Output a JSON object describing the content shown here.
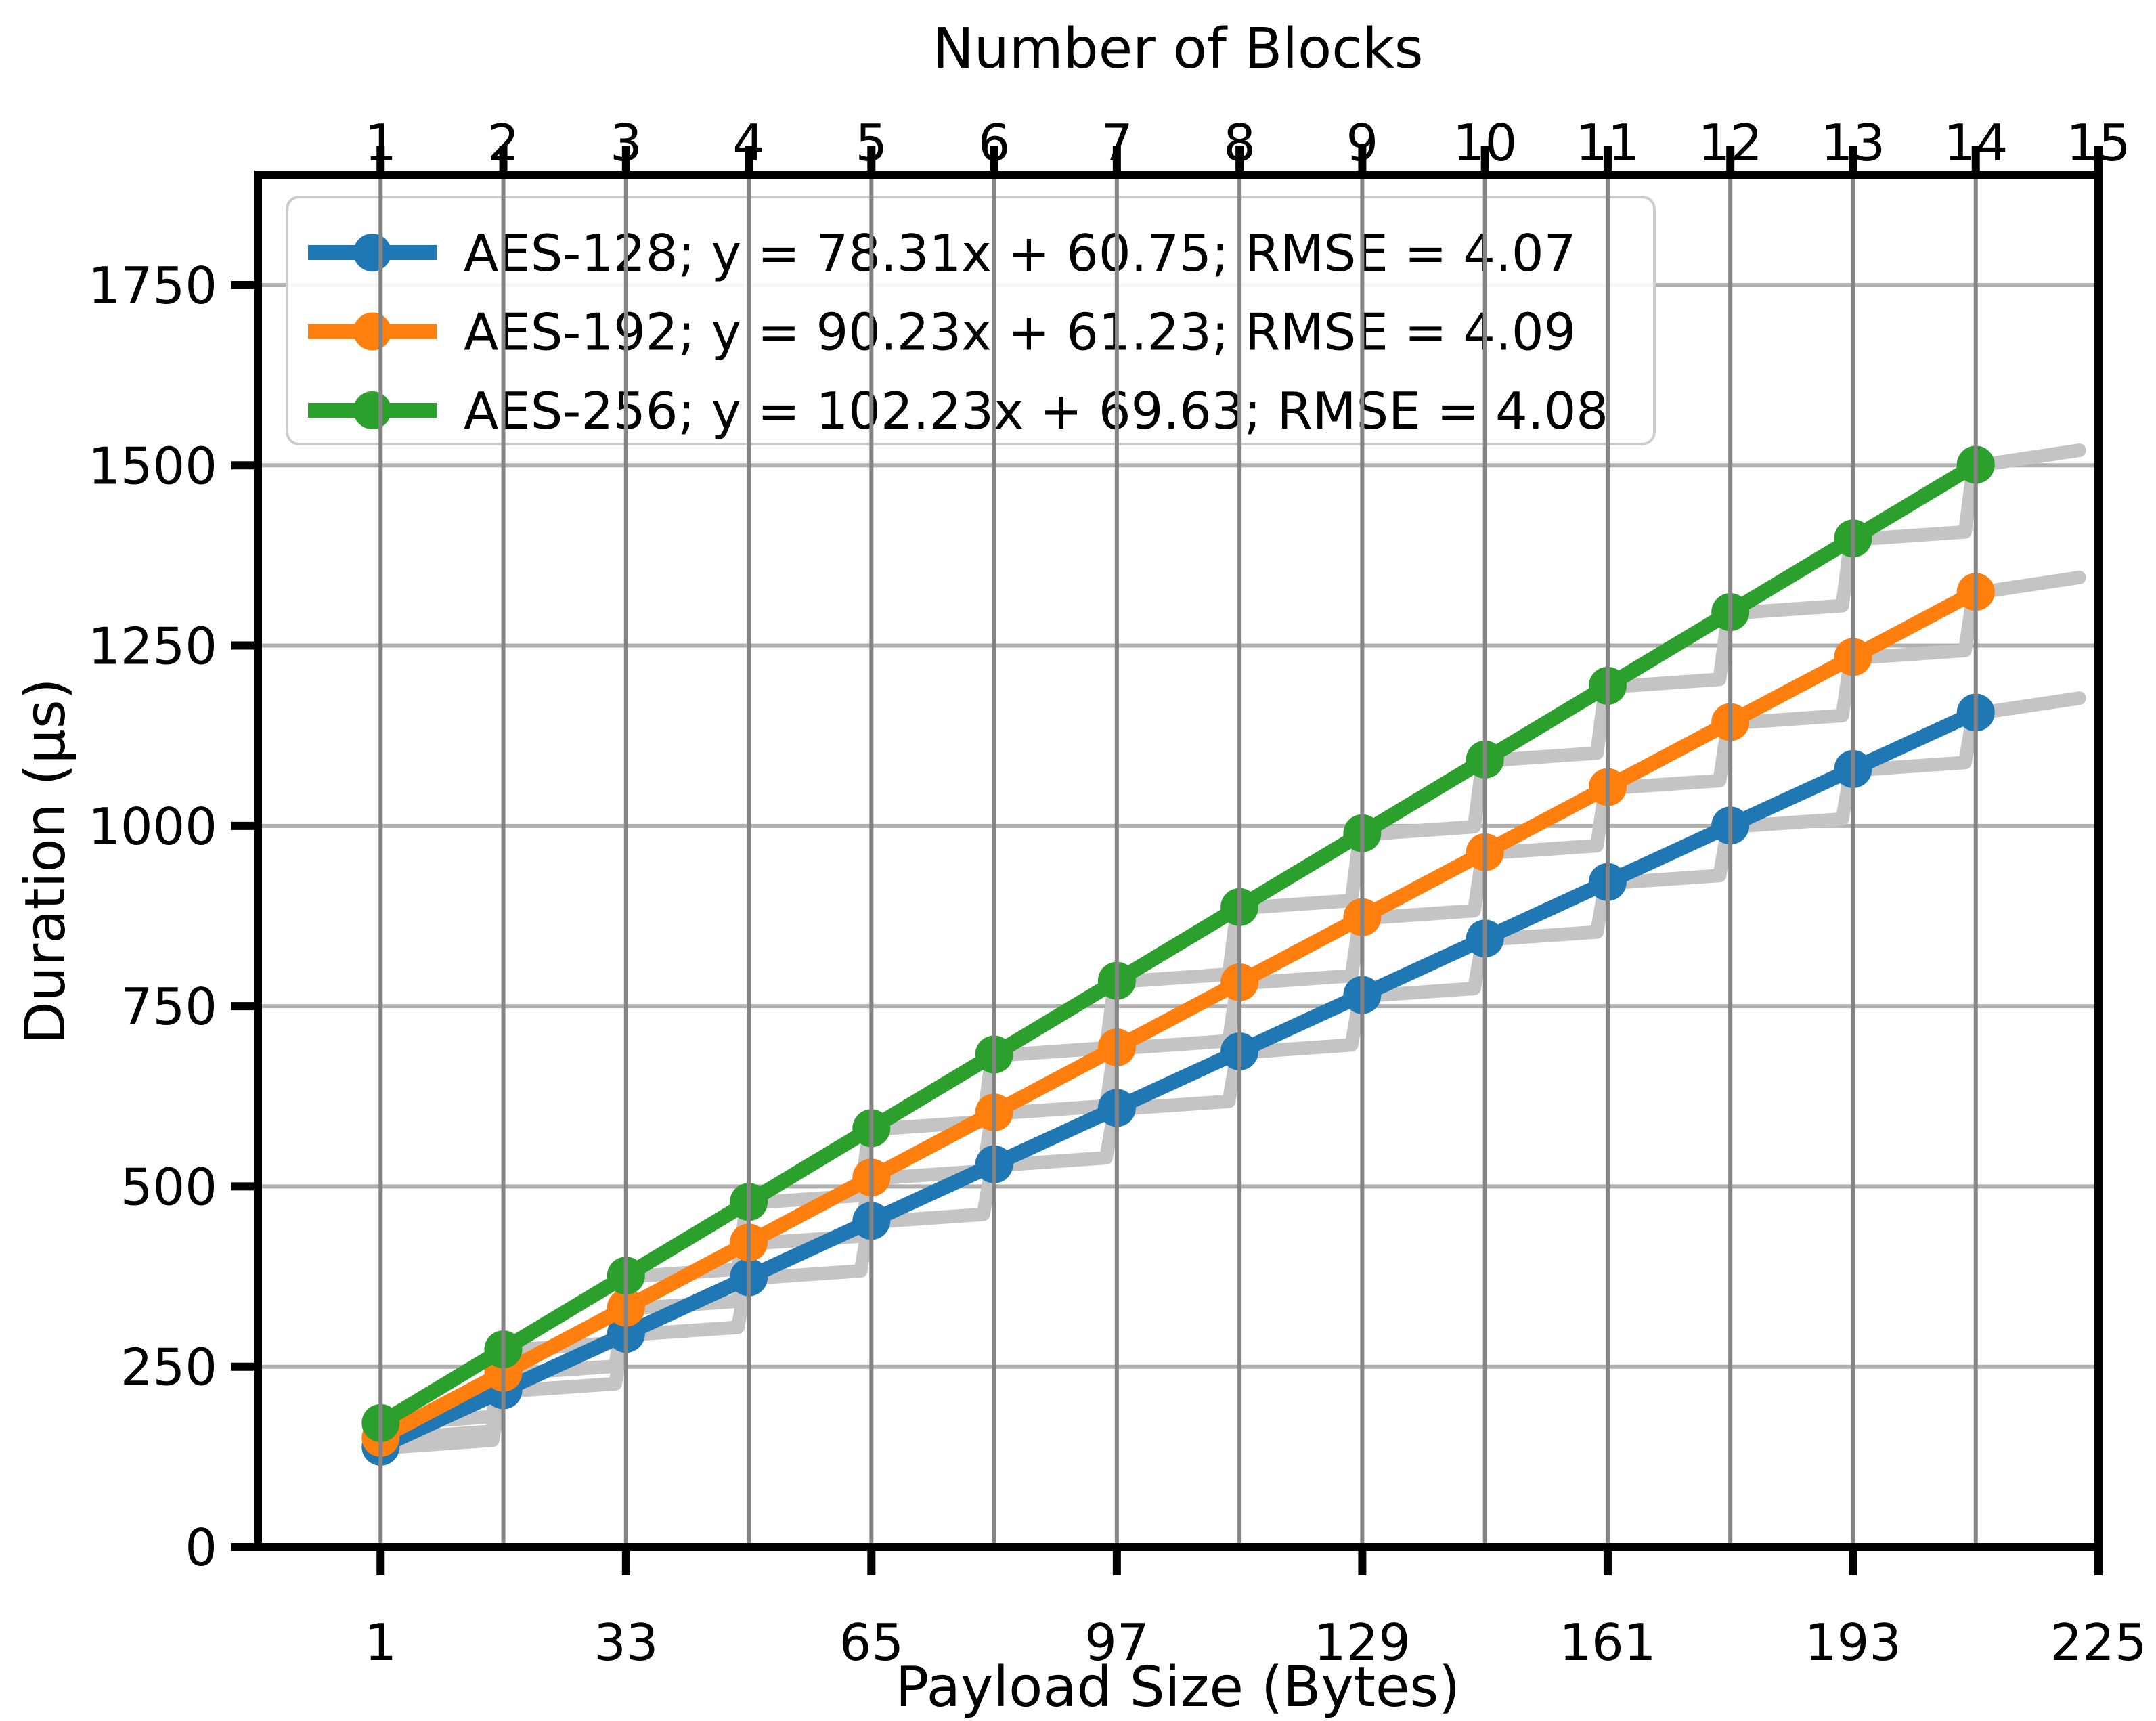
{
  "labels": {
    "top_title": "Number of Blocks",
    "xlabel": "Payload Size (Bytes)",
    "ylabel": "Duration (µs)"
  },
  "axes": {
    "x_bottom_ticks": [
      1,
      33,
      65,
      97,
      129,
      161,
      193,
      225
    ],
    "x_top_ticks": [
      1,
      2,
      3,
      4,
      5,
      6,
      7,
      8,
      9,
      10,
      11,
      12,
      13,
      14,
      15
    ],
    "y_ticks": [
      0,
      250,
      500,
      750,
      1000,
      1250,
      1500,
      1750
    ],
    "xlim": [
      -15,
      225
    ],
    "ylim": [
      0,
      1903
    ],
    "bytes_per_block": 16,
    "grid": true
  },
  "colors": {
    "aes128": "#1f77b4",
    "aes192": "#ff7f0e",
    "aes256": "#2ca02c",
    "staircase": "#c4c4c4",
    "h_grid": "#b0b0b0",
    "v_grid": "#848484",
    "spine": "#000000",
    "legend_border": "#cccccc",
    "legend_bg": "#ffffff"
  },
  "chart_data": {
    "type": "line",
    "title": "Number of Blocks",
    "xlabel": "Payload Size (Bytes)",
    "ylabel": "Duration (µs)",
    "legend_position": "upper left",
    "x_payloads": [
      1,
      17,
      33,
      49,
      65,
      81,
      97,
      113,
      129,
      145,
      161,
      177,
      193,
      209
    ],
    "x_blocks": [
      1,
      2,
      3,
      4,
      5,
      6,
      7,
      8,
      9,
      10,
      11,
      12,
      13,
      14
    ],
    "series": [
      {
        "key": "aes128",
        "name": "AES-128",
        "legend_label": "AES-128; y = 78.31x + 60.75; RMSE = 4.07",
        "slope": 78.31,
        "intercept": 60.75,
        "rmse": 4.07,
        "color": "#1f77b4",
        "values": [
          139.06,
          217.37,
          295.68,
          373.99,
          452.3,
          530.61,
          608.92,
          687.23,
          765.54,
          843.85,
          922.16,
          1000.47,
          1078.78,
          1157.09
        ]
      },
      {
        "key": "aes192",
        "name": "AES-192",
        "legend_label": "AES-192; y = 90.23x + 61.23; RMSE = 4.09",
        "slope": 90.23,
        "intercept": 61.23,
        "rmse": 4.09,
        "color": "#ff7f0e",
        "values": [
          151.46,
          241.69,
          331.92,
          422.15,
          512.38,
          602.61,
          692.84,
          783.07,
          873.3,
          963.53,
          1053.76,
          1143.99,
          1234.22,
          1324.45
        ]
      },
      {
        "key": "aes256",
        "name": "AES-256",
        "legend_label": "AES-256; y = 102.23x + 69.63; RMSE = 4.08",
        "slope": 102.23,
        "intercept": 69.63,
        "rmse": 4.08,
        "color": "#2ca02c",
        "values": [
          171.86,
          274.09,
          376.32,
          478.55,
          580.78,
          683.01,
          785.24,
          887.47,
          989.7,
          1091.93,
          1194.16,
          1296.39,
          1398.62,
          1500.85
        ]
      }
    ],
    "staircase": {
      "description": "raw measured duration step curves, one per series, light gray, stepping up just before each 16-byte block boundary, extending to payload ~223",
      "end_payload": 222.5,
      "end_rise": 20
    }
  }
}
